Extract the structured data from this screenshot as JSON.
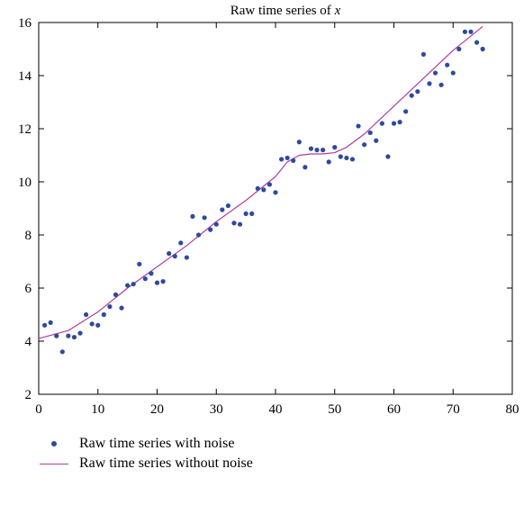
{
  "chart_data": {
    "type": "scatter",
    "title": "Raw time series of x",
    "title_parts": {
      "text": "Raw time series of ",
      "var": "x"
    },
    "xlabel": "",
    "ylabel": "",
    "xlim": [
      0,
      80
    ],
    "ylim": [
      2,
      16
    ],
    "xticks": [
      0,
      10,
      20,
      30,
      40,
      50,
      60,
      70,
      80
    ],
    "yticks": [
      2,
      4,
      6,
      8,
      10,
      12,
      14,
      16
    ],
    "grid": false,
    "legend_position": "bottom-left outside",
    "colors": {
      "scatter": "#2e4a9e",
      "line": "#b03c9e"
    },
    "series": [
      {
        "name": "Raw time series with noise",
        "kind": "scatter",
        "x": [
          1,
          2,
          3,
          4,
          5,
          6,
          7,
          8,
          9,
          10,
          11,
          12,
          13,
          14,
          15,
          16,
          17,
          18,
          19,
          20,
          21,
          22,
          23,
          24,
          25,
          26,
          27,
          28,
          29,
          30,
          31,
          32,
          33,
          34,
          35,
          36,
          37,
          38,
          39,
          40,
          41,
          42,
          43,
          44,
          45,
          46,
          47,
          48,
          49,
          50,
          51,
          52,
          53,
          54,
          55,
          56,
          57,
          58,
          59,
          60,
          61,
          62,
          63,
          64,
          65,
          66,
          67,
          68,
          69,
          70,
          71,
          72,
          73,
          74,
          75
        ],
        "y": [
          4.6,
          4.7,
          4.2,
          3.6,
          4.2,
          4.15,
          4.3,
          5.0,
          4.65,
          4.6,
          5.0,
          5.3,
          5.75,
          5.25,
          6.1,
          6.15,
          6.9,
          6.35,
          6.55,
          6.2,
          6.25,
          7.3,
          7.2,
          7.7,
          7.15,
          8.7,
          8.0,
          8.65,
          8.2,
          8.4,
          8.95,
          9.1,
          8.45,
          8.4,
          8.8,
          8.8,
          9.75,
          9.7,
          9.9,
          9.6,
          10.85,
          10.9,
          10.8,
          11.5,
          10.55,
          11.25,
          11.2,
          11.2,
          10.75,
          11.3,
          10.95,
          10.9,
          10.85,
          12.1,
          11.4,
          11.85,
          11.55,
          12.2,
          10.95,
          12.2,
          12.25,
          12.65,
          13.25,
          13.4,
          14.8,
          13.7,
          14.1,
          13.65,
          14.4,
          14.1,
          15.0,
          15.65,
          15.65,
          15.25,
          15.0
        ]
      },
      {
        "name": "Raw time series without noise",
        "kind": "line",
        "x": [
          0,
          5,
          10,
          15,
          20,
          25,
          30,
          35,
          40,
          42,
          44,
          46,
          48,
          50,
          52,
          55,
          60,
          65,
          70,
          75
        ],
        "y": [
          4.1,
          4.4,
          5.1,
          6.0,
          6.8,
          7.6,
          8.5,
          9.3,
          10.2,
          10.75,
          11.0,
          11.05,
          11.05,
          11.1,
          11.3,
          11.8,
          12.85,
          13.9,
          14.95,
          15.85
        ]
      }
    ]
  }
}
